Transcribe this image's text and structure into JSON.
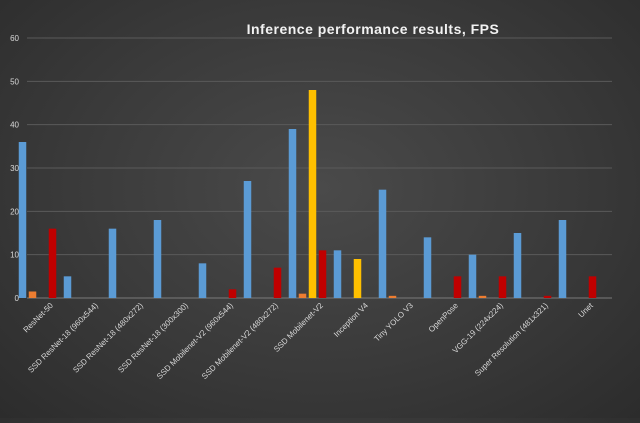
{
  "chart_data": {
    "type": "bar",
    "title": "Inference performance results, FPS",
    "xlabel": "",
    "ylabel": "",
    "ylim": [
      0,
      60
    ],
    "yticks": [
      0,
      10,
      20,
      30,
      40,
      50,
      60
    ],
    "grid": true,
    "legend": "none",
    "categories": [
      "ResNet-50",
      "SSD ResNet-18 (960x544)",
      "SSD ResNet-18 (480x272)",
      "SSD ResNet-18 (300x300)",
      "SSD Mobilenet-V2 (960x544)",
      "SSD Mobilenet-V2 (480x272)",
      "SSD Mobilenet-V2",
      "Inception V4",
      "Tiny YOLO V3",
      "OpenPose",
      "VGG-19 (224x224)",
      "Super Resolution (481x321)",
      "Unet"
    ],
    "series": [
      {
        "color": "#5b9bd5",
        "values": [
          36,
          5,
          16,
          18,
          8,
          27,
          39,
          11,
          25,
          14,
          10,
          15,
          18
        ]
      },
      {
        "color": "#ed7d31",
        "values": [
          1.5,
          0,
          0,
          0,
          0,
          0,
          1,
          0,
          0.5,
          0,
          0.5,
          0,
          0
        ]
      },
      {
        "color": "#ffc000",
        "values": [
          0,
          0,
          0,
          0,
          0,
          0,
          48,
          9,
          0,
          0,
          0,
          0,
          0
        ]
      },
      {
        "color": "#c00000",
        "values": [
          16,
          0,
          0,
          0,
          2,
          7,
          11,
          0,
          0,
          5,
          5,
          0.5,
          5
        ]
      }
    ]
  }
}
